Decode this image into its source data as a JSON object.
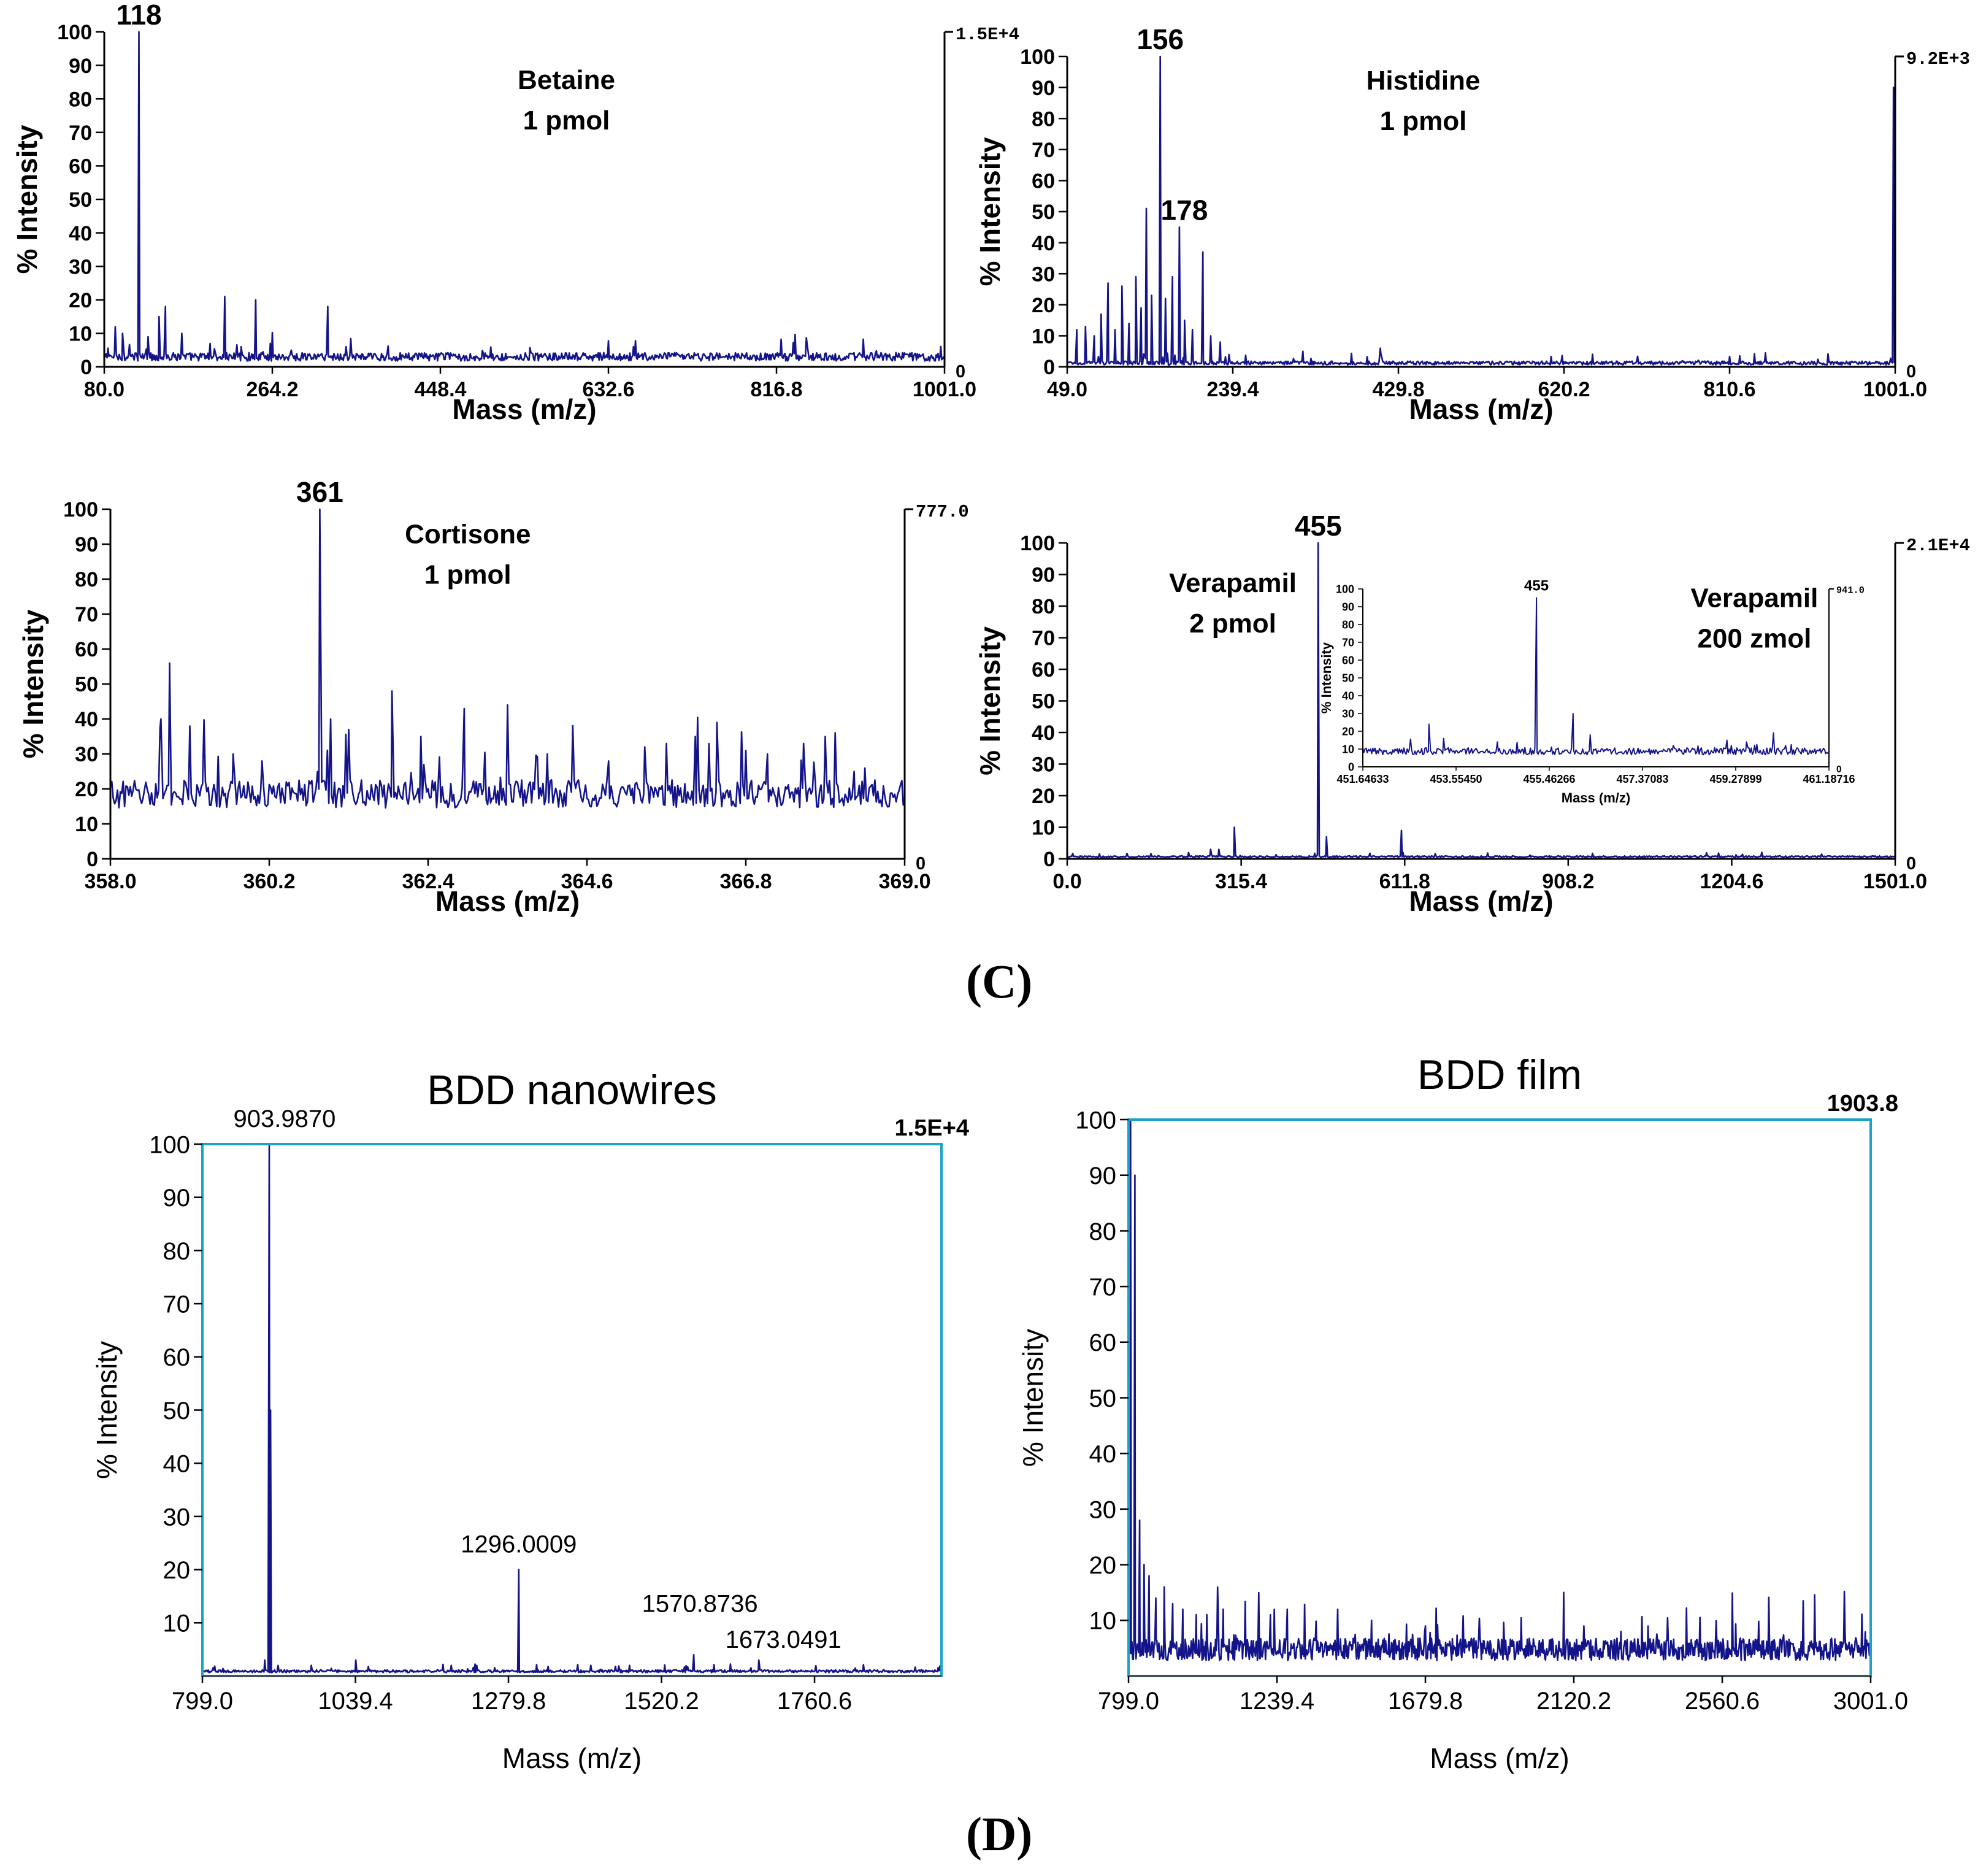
{
  "panel_labels": {
    "c": "(C)",
    "d": "(D)"
  },
  "colors": {
    "trace": "#14148a",
    "axis": "#000000",
    "frame_blue": "#1aa3c8",
    "text": "#000000"
  },
  "chart_data": [
    {
      "id": "betaine",
      "type": "line",
      "panel": "C",
      "title_lines": [
        "Betaine",
        "1 pmol"
      ],
      "xlabel": "Mass (m/z)",
      "ylabel": "% Intensity",
      "xlim": [
        80.0,
        1001.0
      ],
      "ylim": [
        0,
        100
      ],
      "xticks": [
        "80.0",
        "264.2",
        "448.4",
        "632.6",
        "816.8",
        "1001.0"
      ],
      "yticks": [
        "0",
        "10",
        "20",
        "30",
        "40",
        "50",
        "60",
        "70",
        "80",
        "90",
        "100"
      ],
      "right_top_label": "1.5E+4",
      "right_bottom_label": "0",
      "peak_labels": [
        {
          "x": 118,
          "text": "118"
        }
      ],
      "peaks": [
        [
          92,
          12
        ],
        [
          100,
          10
        ],
        [
          118,
          100
        ],
        [
          128,
          9
        ],
        [
          140,
          15
        ],
        [
          147,
          18
        ],
        [
          165,
          10
        ],
        [
          181,
          3
        ],
        [
          196,
          7
        ],
        [
          212,
          21
        ],
        [
          230,
          6
        ],
        [
          246,
          20
        ],
        [
          262,
          7
        ],
        [
          285,
          5
        ],
        [
          300,
          4
        ],
        [
          325,
          18
        ],
        [
          345,
          6
        ],
        [
          400,
          3
        ],
        [
          520,
          4
        ],
        [
          660,
          6
        ],
        [
          760,
          3
        ],
        [
          870,
          4
        ],
        [
          940,
          3
        ]
      ],
      "baseline": 2.5,
      "noise": 2.5,
      "n": 900
    },
    {
      "id": "histidine",
      "type": "line",
      "panel": "C",
      "title_lines": [
        "Histidine",
        "1 pmol"
      ],
      "xlabel": "Mass (m/z)",
      "ylabel": "% Intensity",
      "xlim": [
        49.0,
        1001.0
      ],
      "ylim": [
        0,
        100
      ],
      "xticks": [
        "49.0",
        "239.4",
        "429.8",
        "620.2",
        "810.6",
        "1001.0"
      ],
      "yticks": [
        "0",
        "10",
        "20",
        "30",
        "40",
        "50",
        "60",
        "70",
        "80",
        "90",
        "100"
      ],
      "right_top_label": "9.2E+3",
      "right_bottom_label": "0",
      "peak_labels": [
        {
          "x": 156,
          "text": "156"
        },
        {
          "x": 178,
          "text": "178"
        }
      ],
      "peaks": [
        [
          60,
          12
        ],
        [
          70,
          13
        ],
        [
          80,
          10
        ],
        [
          88,
          17
        ],
        [
          96,
          27
        ],
        [
          104,
          12
        ],
        [
          112,
          26
        ],
        [
          120,
          14
        ],
        [
          128,
          29
        ],
        [
          134,
          19
        ],
        [
          140,
          51
        ],
        [
          146,
          23
        ],
        [
          156,
          100
        ],
        [
          162,
          22
        ],
        [
          170,
          29
        ],
        [
          178,
          45
        ],
        [
          184,
          15
        ],
        [
          193,
          12
        ],
        [
          205,
          37
        ],
        [
          214,
          10
        ],
        [
          225,
          8
        ],
        [
          235,
          4
        ],
        [
          320,
          5
        ],
        [
          409,
          6
        ],
        [
          999,
          90
        ]
      ],
      "baseline": 1.0,
      "noise": 1.2,
      "n": 900
    },
    {
      "id": "cortisone",
      "type": "line",
      "panel": "C",
      "title_lines": [
        "Cortisone",
        "1 pmol"
      ],
      "xlabel": "Mass (m/z)",
      "ylabel": "% Intensity",
      "xlim": [
        358.0,
        369.0
      ],
      "ylim": [
        0,
        100
      ],
      "xticks": [
        "358.0",
        "360.2",
        "362.4",
        "364.6",
        "366.8",
        "369.0"
      ],
      "yticks": [
        "0",
        "10",
        "20",
        "30",
        "40",
        "50",
        "60",
        "70",
        "80",
        "90",
        "100"
      ],
      "right_top_label": "777.0",
      "right_bottom_label": "0",
      "peak_labels": [
        {
          "x": 360.9,
          "text": "361"
        }
      ],
      "peaks": [
        [
          358.7,
          40
        ],
        [
          358.82,
          56
        ],
        [
          359.1,
          38
        ],
        [
          359.7,
          30
        ],
        [
          360.1,
          28
        ],
        [
          360.9,
          100
        ],
        [
          361.05,
          40
        ],
        [
          361.3,
          37
        ],
        [
          361.9,
          48
        ],
        [
          362.3,
          35
        ],
        [
          362.9,
          43
        ],
        [
          363.5,
          44
        ],
        [
          364.05,
          30
        ],
        [
          364.9,
          28
        ],
        [
          365.4,
          32
        ],
        [
          365.7,
          33
        ],
        [
          366.1,
          35
        ],
        [
          366.4,
          39
        ],
        [
          366.8,
          31
        ],
        [
          367.1,
          30
        ],
        [
          367.6,
          33
        ],
        [
          367.9,
          35
        ],
        [
          368.3,
          25
        ]
      ],
      "baseline": 17,
      "noise": 8,
      "n": 560
    },
    {
      "id": "verapamil",
      "type": "line",
      "panel": "C",
      "title_lines": [
        "Verapamil",
        "2 pmol"
      ],
      "xlabel": "Mass (m/z)",
      "ylabel": "% Intensity",
      "xlim": [
        0.0,
        1501.0
      ],
      "ylim": [
        0,
        100
      ],
      "xticks": [
        "0.0",
        "315.4",
        "611.8",
        "908.2",
        "1204.6",
        "1501.0"
      ],
      "yticks": [
        "0",
        "10",
        "20",
        "30",
        "40",
        "50",
        "60",
        "70",
        "80",
        "90",
        "100"
      ],
      "right_top_label": "2.1E+4",
      "right_bottom_label": "0",
      "peak_labels": [
        {
          "x": 455,
          "text": "455"
        }
      ],
      "peaks": [
        [
          220,
          2
        ],
        [
          260,
          3
        ],
        [
          275,
          3
        ],
        [
          303,
          10
        ],
        [
          455,
          100
        ],
        [
          470,
          7
        ],
        [
          606,
          9
        ]
      ],
      "baseline": 0.6,
      "noise": 0.5,
      "n": 900
    },
    {
      "id": "verapamil_inset",
      "type": "line",
      "panel": "C",
      "title_lines": [
        "Verapamil",
        "200 zmol"
      ],
      "xlabel": "Mass (m/z)",
      "ylabel": "% Intensity",
      "xlim": [
        451.64633,
        461.18716
      ],
      "ylim": [
        0,
        100
      ],
      "xticks": [
        "451.64633",
        "453.55450",
        "455.46266",
        "457.37083",
        "459.27899",
        "461.18716"
      ],
      "yticks": [
        "0",
        "10",
        "20",
        "30",
        "40",
        "50",
        "60",
        "70",
        "80",
        "90",
        "100"
      ],
      "right_top_label": "941.0",
      "right_bottom_label": "0",
      "peak_labels": [
        {
          "x": 455.2,
          "text": "455"
        }
      ],
      "peaks": [
        [
          452.2,
          8
        ],
        [
          453.0,
          24
        ],
        [
          453.3,
          16
        ],
        [
          454.4,
          14
        ],
        [
          455.2,
          95
        ],
        [
          455.95,
          30
        ],
        [
          456.3,
          18
        ],
        [
          458.0,
          12
        ],
        [
          459.1,
          15
        ],
        [
          459.5,
          14
        ],
        [
          460.3,
          12
        ],
        [
          460.9,
          10
        ]
      ],
      "baseline": 8,
      "noise": 4,
      "n": 420
    },
    {
      "id": "bdd_nanowires",
      "type": "line",
      "panel": "D",
      "title_lines": [
        "BDD nanowires"
      ],
      "xlabel": "Mass (m/z)",
      "ylabel": "% Intensity",
      "xlim": [
        799.0,
        1960.0
      ],
      "ylim": [
        0,
        100
      ],
      "xticks": [
        "799.0",
        "1039.4",
        "1279.8",
        "1520.2",
        "1760.6"
      ],
      "yticks": [
        "10",
        "20",
        "30",
        "40",
        "50",
        "60",
        "70",
        "80",
        "90",
        "100"
      ],
      "right_top_label": "1.5E+4",
      "peak_labels": [
        {
          "x": 903.987,
          "text": "903.9870"
        },
        {
          "x": 1296.0009,
          "text": "1296.0009"
        },
        {
          "x": 1570.8736,
          "text": "1570.8736"
        },
        {
          "x": 1673.0491,
          "text": "1673.0491"
        }
      ],
      "peaks": [
        [
          897,
          3
        ],
        [
          903.987,
          100
        ],
        [
          906,
          50
        ],
        [
          918,
          2
        ],
        [
          970,
          2
        ],
        [
          1040,
          3
        ],
        [
          1190,
          2
        ],
        [
          1230,
          2
        ],
        [
          1296.0009,
          20
        ],
        [
          1470,
          2
        ],
        [
          1570.8736,
          4
        ],
        [
          1673.0491,
          3
        ]
      ],
      "baseline": 0.8,
      "noise": 0.5,
      "n": 900
    },
    {
      "id": "bdd_film",
      "type": "line",
      "panel": "D",
      "title_lines": [
        "BDD film"
      ],
      "xlabel": "Mass (m/z)",
      "ylabel": "% Intensity",
      "xlim": [
        799.0,
        3001.0
      ],
      "ylim": [
        0,
        100
      ],
      "xticks": [
        "799.0",
        "1239.4",
        "1679.8",
        "2120.2",
        "2560.6",
        "3001.0"
      ],
      "yticks": [
        "10",
        "20",
        "30",
        "40",
        "50",
        "60",
        "70",
        "80",
        "90",
        "100"
      ],
      "right_top_label": "1903.8",
      "peak_labels": [],
      "peaks": [
        [
          805,
          100
        ],
        [
          818,
          90
        ],
        [
          832,
          28
        ],
        [
          845,
          20
        ],
        [
          860,
          18
        ],
        [
          880,
          14
        ],
        [
          905,
          16
        ],
        [
          930,
          13
        ],
        [
          960,
          12
        ],
        [
          1000,
          11
        ],
        [
          1080,
          12
        ],
        [
          1220,
          11
        ],
        [
          1270,
          12
        ],
        [
          1520,
          10
        ],
        [
          1680,
          9
        ],
        [
          2150,
          9
        ],
        [
          2260,
          8
        ]
      ],
      "baseline": 4,
      "noise": 4,
      "n": 1100
    }
  ]
}
